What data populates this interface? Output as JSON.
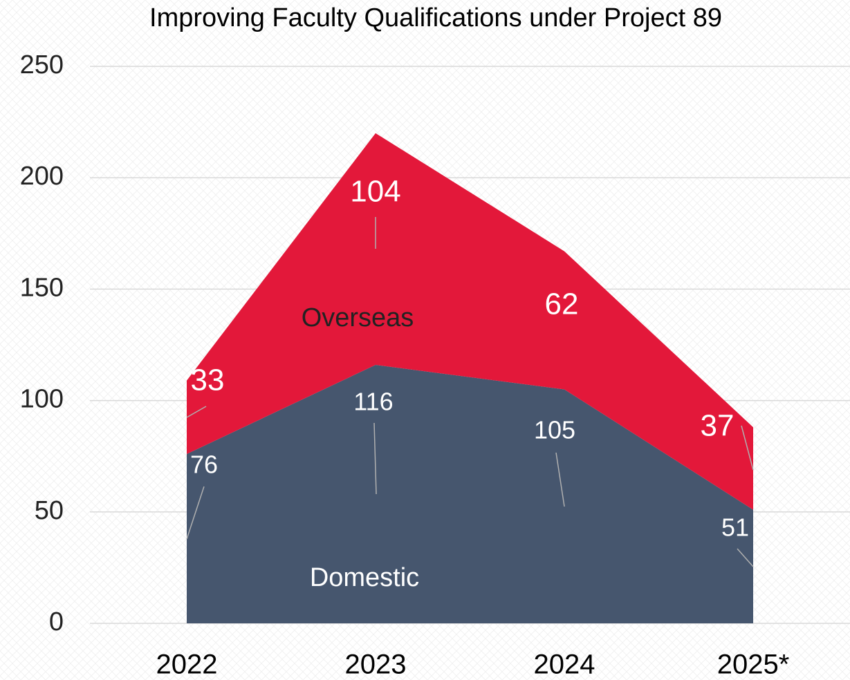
{
  "chart_data": {
    "type": "stacked_area",
    "title": "Improving Faculty Qualifications under Project 89",
    "categories": [
      "2022",
      "2023",
      "2024",
      "2025*"
    ],
    "series": [
      {
        "name": "Domestic",
        "color": "#46566e",
        "values": [
          76,
          116,
          105,
          51
        ]
      },
      {
        "name": "Overseas",
        "color": "#e3183a",
        "values": [
          33,
          104,
          62,
          37
        ]
      }
    ],
    "ylim": [
      0,
      250
    ],
    "yticks": [
      0,
      50,
      100,
      150,
      200,
      250
    ],
    "grid": true
  }
}
